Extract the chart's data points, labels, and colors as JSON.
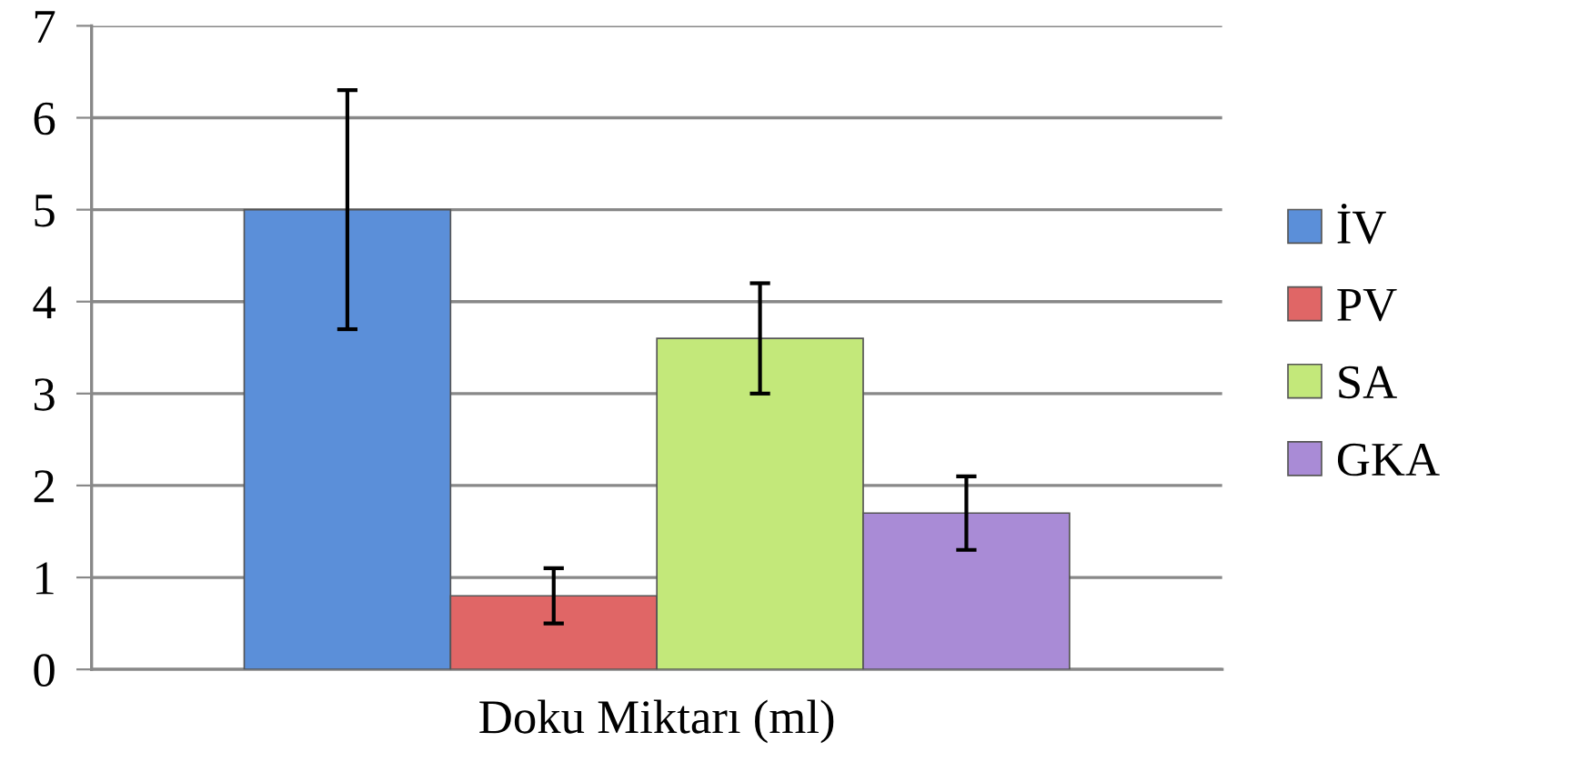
{
  "chart_data": {
    "type": "bar",
    "categories": [
      "Doku Miktarı (ml)"
    ],
    "series": [
      {
        "name": "İV",
        "color": "#5b8fd9",
        "values": [
          5.0
        ],
        "errors": [
          1.3
        ]
      },
      {
        "name": "PV",
        "color": "#e06666",
        "values": [
          0.8
        ],
        "errors": [
          0.3
        ]
      },
      {
        "name": "SA",
        "color": "#c3e87a",
        "values": [
          3.6
        ],
        "errors": [
          0.6
        ]
      },
      {
        "name": "GKA",
        "color": "#a98bd6",
        "values": [
          1.7
        ],
        "errors": [
          0.4
        ]
      }
    ],
    "ylim": [
      0,
      7
    ],
    "yticks": [
      0,
      1,
      2,
      3,
      4,
      5,
      6,
      7
    ],
    "grid": "y",
    "legend": "right"
  }
}
